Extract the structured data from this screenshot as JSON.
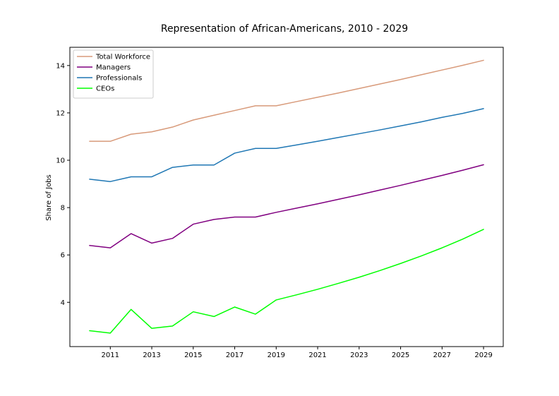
{
  "chart_data": {
    "type": "line",
    "title": "Representation of African-Americans, 2010 - 2029",
    "xlabel": "",
    "ylabel": "Share of Jobs",
    "x": [
      2010,
      2011,
      2012,
      2013,
      2014,
      2015,
      2016,
      2017,
      2018,
      2019,
      2020,
      2021,
      2022,
      2023,
      2024,
      2025,
      2026,
      2027,
      2028,
      2029
    ],
    "xticks": [
      2011,
      2013,
      2015,
      2017,
      2019,
      2021,
      2023,
      2025,
      2027,
      2029
    ],
    "yticks": [
      4,
      6,
      8,
      10,
      12,
      14
    ],
    "xlim": [
      2009.05,
      2029.95
    ],
    "ylim": [
      2.13,
      14.77
    ],
    "grid": false,
    "legend_position": "top-left",
    "series": [
      {
        "name": "Total Workforce",
        "color": "#d89a7a",
        "values": [
          10.8,
          10.8,
          11.1,
          11.2,
          11.4,
          11.7,
          11.9,
          12.1,
          12.3,
          12.3,
          12.48,
          12.66,
          12.84,
          13.03,
          13.22,
          13.41,
          13.61,
          13.81,
          14.01,
          14.22
        ]
      },
      {
        "name": "Managers",
        "color": "#800080",
        "values": [
          6.4,
          6.3,
          6.9,
          6.5,
          6.7,
          7.3,
          7.5,
          7.6,
          7.6,
          7.8,
          7.98,
          8.16,
          8.35,
          8.54,
          8.74,
          8.94,
          9.15,
          9.36,
          9.58,
          9.81
        ]
      },
      {
        "name": "Professionals",
        "color": "#1f77b4",
        "values": [
          9.2,
          9.1,
          9.3,
          9.3,
          9.7,
          9.8,
          9.8,
          10.3,
          10.5,
          10.5,
          10.65,
          10.8,
          10.96,
          11.12,
          11.28,
          11.45,
          11.62,
          11.81,
          11.98,
          12.18
        ]
      },
      {
        "name": "CEOs",
        "color": "#00ff00",
        "values": [
          2.8,
          2.7,
          3.7,
          2.9,
          3.0,
          3.6,
          3.4,
          3.8,
          3.5,
          4.1,
          4.32,
          4.55,
          4.8,
          5.06,
          5.34,
          5.64,
          5.96,
          6.3,
          6.67,
          7.08
        ]
      }
    ]
  }
}
